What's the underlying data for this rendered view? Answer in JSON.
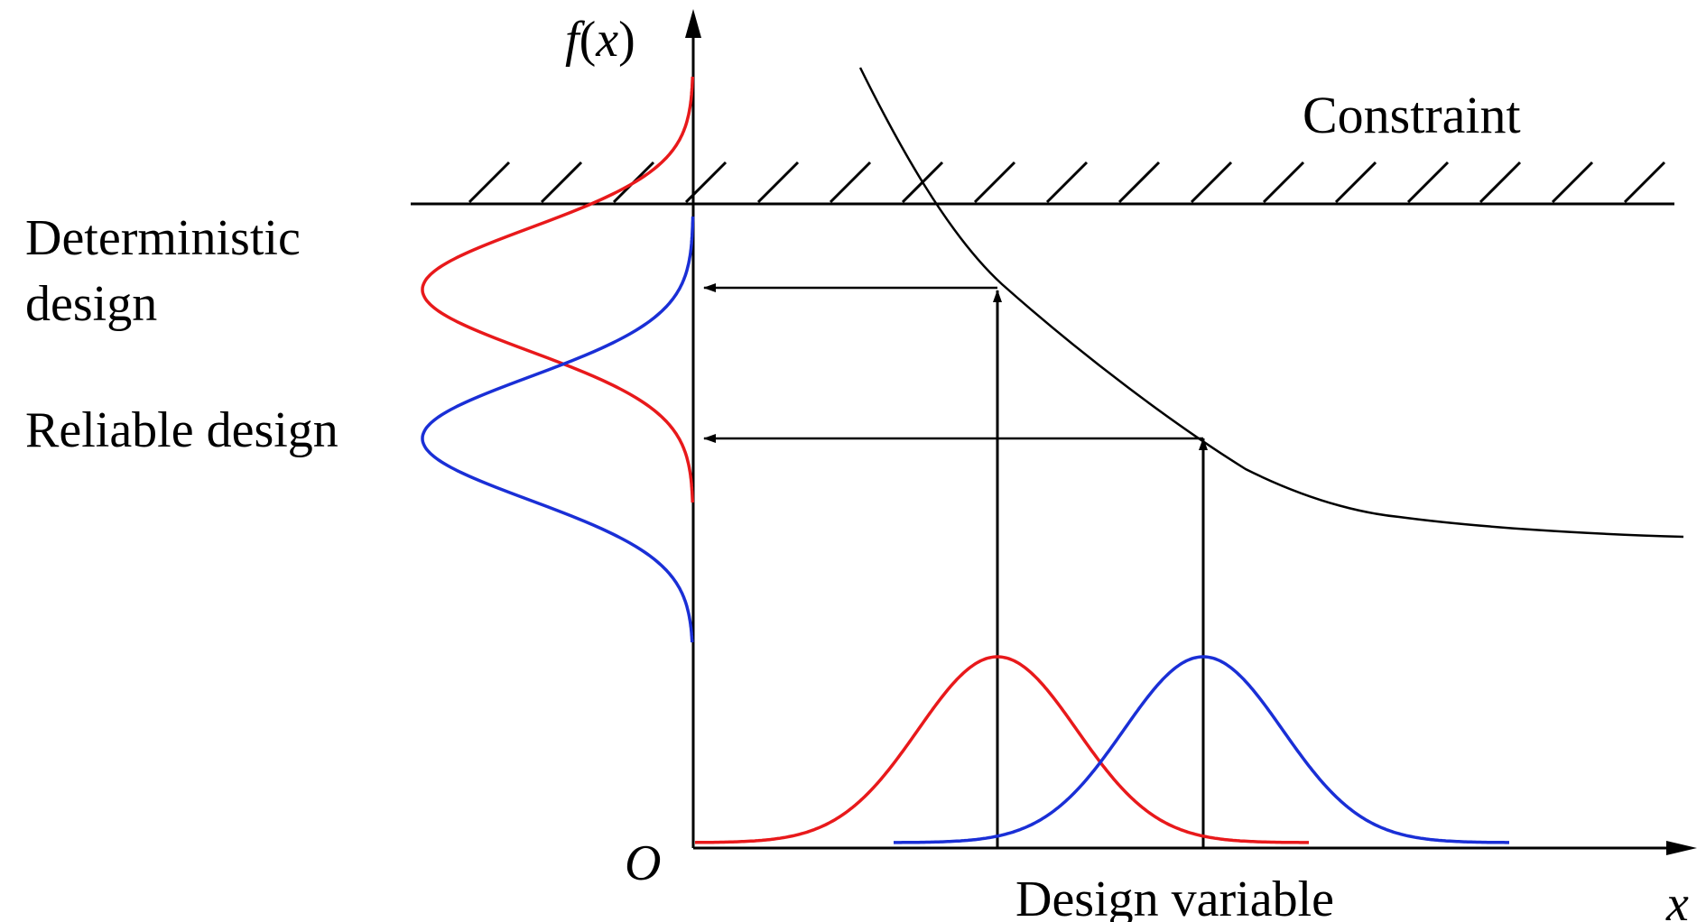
{
  "labels": {
    "y_axis_f": "f",
    "y_axis_paren_open": "(",
    "y_axis_x": "x",
    "y_axis_paren_close": ")",
    "origin": "O",
    "x_axis": "x",
    "constraint": "Constraint",
    "deterministic_line1": "Deterministic",
    "deterministic_line2": "design",
    "reliable": "Reliable design",
    "design_variable": "Design variable"
  },
  "colors": {
    "deterministic": "#e8191b",
    "reliable": "#1a2fd6",
    "lines": "#000000"
  }
}
